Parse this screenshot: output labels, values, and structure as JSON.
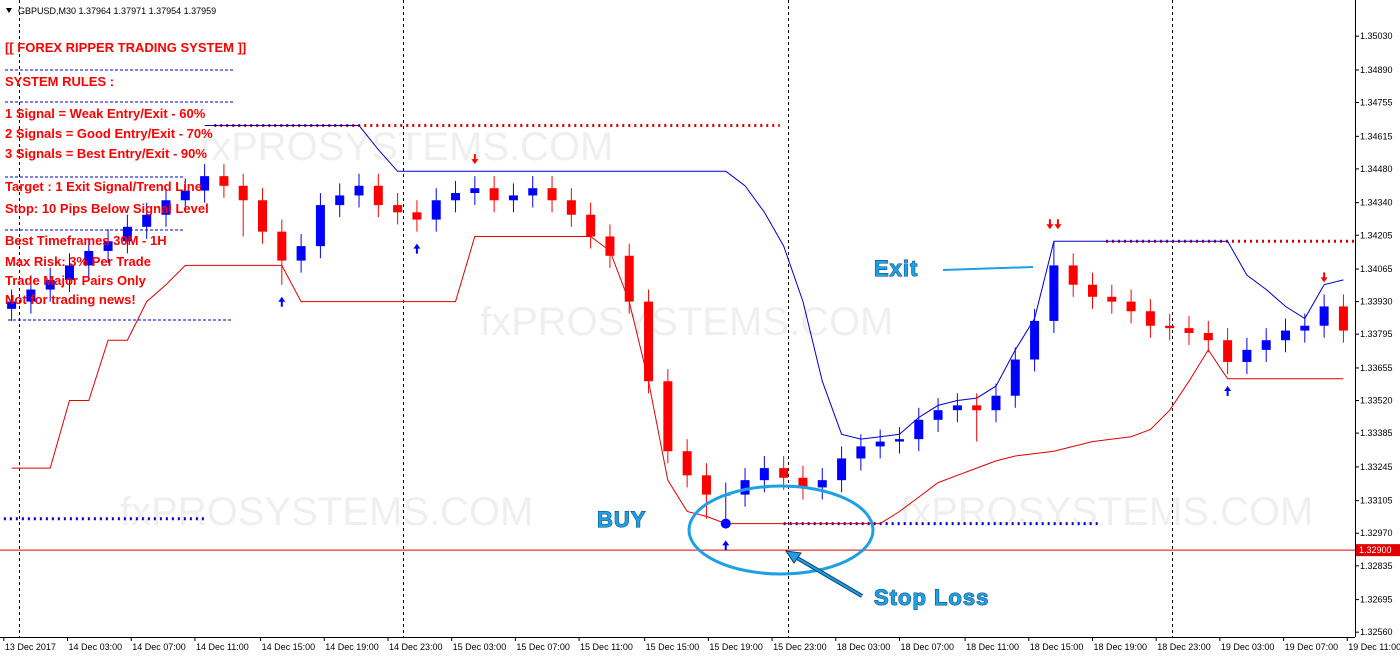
{
  "chart_data": {
    "type": "candlestick",
    "header": "GBPUSD,M30  1.37964 1.37971 1.37954 1.37959",
    "rules": [
      "[[ FOREX RIPPER TRADING SYSTEM ]]",
      "SYSTEM RULES :",
      "1 Signal    = Weak Entry/Exit - 60%",
      "2 Signals = Good Entry/Exit - 70%",
      "3 Signals = Best Entry/Exit - 90%",
      "Target : 1  Exit Signal/Trend Line",
      "Stop: 10 Pips Below Signal Level",
      "Best Timeframes 30M - 1H",
      "Max Risk: 3% Per Trade",
      "Trade Major Pairs Only",
      "Not for trading news!"
    ],
    "annotations": {
      "buy": "BUY",
      "exit": "Exit",
      "stop_loss": "Stop Loss"
    },
    "watermark": "fxPROSYSTEMS.COM",
    "up_color": "#0000ff",
    "down_color": "#ff0000",
    "open": [
      1.339,
      1.3393,
      1.3398,
      1.3402,
      1.3408,
      1.3414,
      1.3418,
      1.3424,
      1.3429,
      1.3435,
      1.3439,
      1.3445,
      1.3441,
      1.3435,
      1.3422,
      1.341,
      1.3416,
      1.3433,
      1.3437,
      1.3441,
      1.3433,
      1.343,
      1.3427,
      1.3435,
      1.3438,
      1.344,
      1.3435,
      1.3437,
      1.344,
      1.3435,
      1.3429,
      1.342,
      1.3412,
      1.3393,
      1.336,
      1.3331,
      1.3321,
      1.3313,
      1.3313,
      1.3319,
      1.3324,
      1.332,
      1.3316,
      1.3319,
      1.3328,
      1.3333,
      1.3335,
      1.3336,
      1.3344,
      1.3348,
      1.335,
      1.3348,
      1.3354,
      1.3369,
      1.3385,
      1.3408,
      1.34,
      1.3395,
      1.3393,
      1.3389,
      1.3383,
      1.3382,
      1.338,
      1.3377,
      1.3368,
      1.3373,
      1.3377,
      1.3381,
      1.3383,
      1.3391
    ],
    "high": [
      1.3398,
      1.3403,
      1.3407,
      1.3413,
      1.3419,
      1.3423,
      1.3429,
      1.3434,
      1.344,
      1.3444,
      1.345,
      1.345,
      1.3446,
      1.344,
      1.3427,
      1.3421,
      1.3438,
      1.3442,
      1.3446,
      1.3446,
      1.3438,
      1.3435,
      1.344,
      1.3443,
      1.3445,
      1.3445,
      1.3442,
      1.3445,
      1.3445,
      1.344,
      1.3434,
      1.3425,
      1.3417,
      1.3398,
      1.3365,
      1.3336,
      1.3326,
      1.3318,
      1.3324,
      1.3329,
      1.3329,
      1.3325,
      1.3324,
      1.3333,
      1.3338,
      1.334,
      1.3341,
      1.3349,
      1.3353,
      1.3355,
      1.3355,
      1.3359,
      1.3374,
      1.339,
      1.3418,
      1.3413,
      1.3405,
      1.34,
      1.3398,
      1.3394,
      1.3388,
      1.3387,
      1.3385,
      1.3382,
      1.3378,
      1.3382,
      1.3386,
      1.3388,
      1.3396,
      1.3396
    ],
    "low": [
      1.3385,
      1.3388,
      1.3393,
      1.3397,
      1.3403,
      1.3409,
      1.3413,
      1.3419,
      1.3424,
      1.343,
      1.3434,
      1.3436,
      1.342,
      1.3417,
      1.34,
      1.3405,
      1.3411,
      1.3428,
      1.3432,
      1.3428,
      1.3425,
      1.3422,
      1.3422,
      1.343,
      1.3433,
      1.343,
      1.343,
      1.3432,
      1.343,
      1.3424,
      1.3415,
      1.3407,
      1.3388,
      1.3355,
      1.3326,
      1.3316,
      1.3303,
      1.3299,
      1.3308,
      1.3314,
      1.3315,
      1.3311,
      1.3311,
      1.3314,
      1.3323,
      1.3328,
      1.333,
      1.3331,
      1.3339,
      1.3343,
      1.3335,
      1.3343,
      1.3349,
      1.3364,
      1.338,
      1.3395,
      1.339,
      1.3388,
      1.3384,
      1.3378,
      1.3377,
      1.3375,
      1.3372,
      1.3363,
      1.3363,
      1.3368,
      1.3372,
      1.3376,
      1.3378,
      1.3376
    ],
    "close": [
      1.3393,
      1.3398,
      1.3402,
      1.3408,
      1.3414,
      1.3418,
      1.3424,
      1.3429,
      1.3435,
      1.3439,
      1.3445,
      1.3441,
      1.3435,
      1.3422,
      1.341,
      1.3416,
      1.3433,
      1.3437,
      1.3441,
      1.3433,
      1.343,
      1.3427,
      1.3435,
      1.3438,
      1.344,
      1.3435,
      1.3437,
      1.344,
      1.3435,
      1.3429,
      1.342,
      1.3412,
      1.3393,
      1.336,
      1.3331,
      1.3321,
      1.3313,
      1.3313,
      1.3319,
      1.3324,
      1.332,
      1.3316,
      1.3319,
      1.3328,
      1.3333,
      1.3335,
      1.3336,
      1.3344,
      1.3348,
      1.335,
      1.3348,
      1.3354,
      1.3369,
      1.3385,
      1.3408,
      1.34,
      1.3395,
      1.3393,
      1.3389,
      1.3383,
      1.3382,
      1.338,
      1.3377,
      1.3368,
      1.3373,
      1.3377,
      1.3381,
      1.3383,
      1.3391,
      1.3381
    ],
    "series": [
      {
        "color": "#0000cc",
        "values": [
          null,
          null,
          null,
          null,
          null,
          null,
          null,
          null,
          null,
          null,
          1.3466,
          1.3466,
          1.3466,
          1.3466,
          1.3466,
          1.3466,
          1.3466,
          1.3466,
          1.3466,
          1.3456,
          1.3447,
          1.3447,
          1.3447,
          1.3447,
          1.3447,
          1.3447,
          1.3447,
          1.3447,
          1.3447,
          1.3447,
          1.3447,
          1.3447,
          1.3447,
          1.3447,
          1.3447,
          1.3447,
          1.3447,
          1.3447,
          1.3441,
          1.343,
          1.3416,
          1.3393,
          1.336,
          1.3338,
          1.3336,
          1.3337,
          1.3338,
          1.3345,
          1.335,
          1.3352,
          1.3353,
          1.3358,
          1.3373,
          1.3386,
          1.3418,
          1.3418,
          1.3418,
          1.3418,
          1.3418,
          1.3418,
          1.3418,
          1.3418,
          1.3418,
          1.3418,
          1.3404,
          1.3398,
          1.3391,
          1.3386,
          1.34,
          1.3402
        ]
      },
      {
        "color": "#e00000",
        "values": [
          1.3324,
          1.3324,
          1.3324,
          1.3352,
          1.3352,
          1.3377,
          1.3377,
          1.3393,
          1.34,
          1.3408,
          1.3408,
          1.3408,
          1.3408,
          1.3408,
          1.3408,
          1.3393,
          1.3393,
          1.3393,
          1.3393,
          1.3393,
          1.3393,
          1.3393,
          1.3393,
          1.3393,
          1.342,
          1.342,
          1.342,
          1.342,
          1.342,
          1.342,
          1.342,
          1.3414,
          1.3393,
          1.336,
          1.3319,
          1.3306,
          1.3304,
          1.3301,
          1.3301,
          1.3301,
          1.3301,
          1.3301,
          1.3301,
          1.3301,
          1.3301,
          1.3301,
          1.3306,
          1.3312,
          1.3318,
          1.3321,
          1.3324,
          1.3327,
          1.3329,
          1.333,
          1.3331,
          1.3333,
          1.3335,
          1.3336,
          1.3337,
          1.334,
          1.3348,
          1.336,
          1.3373,
          1.3361,
          1.3361,
          1.3361,
          1.3361,
          1.3361,
          1.3361,
          1.3361
        ]
      }
    ],
    "levels": [
      {
        "value": 1.3466,
        "start": 10.5,
        "end": 39.8,
        "color": "#e00000"
      },
      {
        "value": 1.3418,
        "start": 56.7,
        "end": 69.6,
        "color": "#e00000"
      },
      {
        "value": 1.3303,
        "start": -0.4,
        "end": 10.0,
        "color": "#0000cc"
      },
      {
        "value": 1.3301,
        "start": 40.0,
        "end": 56.4,
        "color": "#0000cc"
      }
    ],
    "price_line": {
      "value": 1.329,
      "label": "1.32900",
      "color": "#e00000"
    },
    "signals": [
      {
        "index": 14,
        "direction": "up",
        "count": 1
      },
      {
        "index": 21,
        "direction": "up",
        "count": 1
      },
      {
        "index": 24,
        "direction": "down",
        "count": 1
      },
      {
        "index": 37,
        "direction": "up",
        "count": 1
      },
      {
        "index": 54,
        "direction": "down",
        "count": 2
      },
      {
        "index": 63,
        "direction": "up",
        "count": 1
      },
      {
        "index": 68,
        "direction": "down",
        "count": 1
      }
    ],
    "entry": {
      "index": 37,
      "value": 1.3301
    },
    "separators": [
      0.4,
      20.3,
      40.2,
      60.1
    ],
    "xlim": [
      -0.6,
      69.6
    ],
    "ylim": [
      1.3254,
      1.3518
    ],
    "xticks": [
      {
        "value": -0.4,
        "label": "13 Dec 2017"
      },
      {
        "value": 2.9,
        "label": "14 Dec 03:00"
      },
      {
        "value": 6.2,
        "label": "14 Dec 07:00"
      },
      {
        "value": 9.5,
        "label": "14 Dec 11:00"
      },
      {
        "value": 12.9,
        "label": "14 Dec 15:00"
      },
      {
        "value": 16.2,
        "label": "14 Dec 19:00"
      },
      {
        "value": 19.5,
        "label": "14 Dec 23:00"
      },
      {
        "value": 22.8,
        "label": "15 Dec 03:00"
      },
      {
        "value": 26.1,
        "label": "15 Dec 07:00"
      },
      {
        "value": 29.4,
        "label": "15 Dec 11:00"
      },
      {
        "value": 32.8,
        "label": "15 Dec 15:00"
      },
      {
        "value": 36.1,
        "label": "15 Dec 19:00"
      },
      {
        "value": 39.4,
        "label": "15 Dec 23:00"
      },
      {
        "value": 42.7,
        "label": "18 Dec 03:00"
      },
      {
        "value": 46.0,
        "label": "18 Dec 07:00"
      },
      {
        "value": 49.4,
        "label": "18 Dec 11:00"
      },
      {
        "value": 52.7,
        "label": "18 Dec 15:00"
      },
      {
        "value": 56.0,
        "label": "18 Dec 19:00"
      },
      {
        "value": 59.3,
        "label": "18 Dec 23:00"
      },
      {
        "value": 62.6,
        "label": "19 Dec 03:00"
      },
      {
        "value": 65.9,
        "label": "19 Dec 07:00"
      },
      {
        "value": 69.2,
        "label": "19 Dec 11:00"
      }
    ],
    "yticks": [
      {
        "value": 1.3503,
        "label": "1.35030"
      },
      {
        "value": 1.3489,
        "label": "1.34890"
      },
      1.34755,
      1.34615,
      {
        "value": 1.3448,
        "label": "1.34480"
      },
      {
        "value": 1.3434,
        "label": "1.34340"
      },
      1.34205,
      1.34065,
      {
        "value": 1.3393,
        "label": "1.33930"
      },
      1.33795,
      1.33655,
      {
        "value": 1.3352,
        "label": "1.33520"
      },
      1.33385,
      1.33245,
      1.33105,
      {
        "value": 1.3297,
        "label": "1.32970"
      },
      1.32835,
      1.32695,
      {
        "value": 1.3256,
        "label": "1.32560"
      }
    ]
  }
}
